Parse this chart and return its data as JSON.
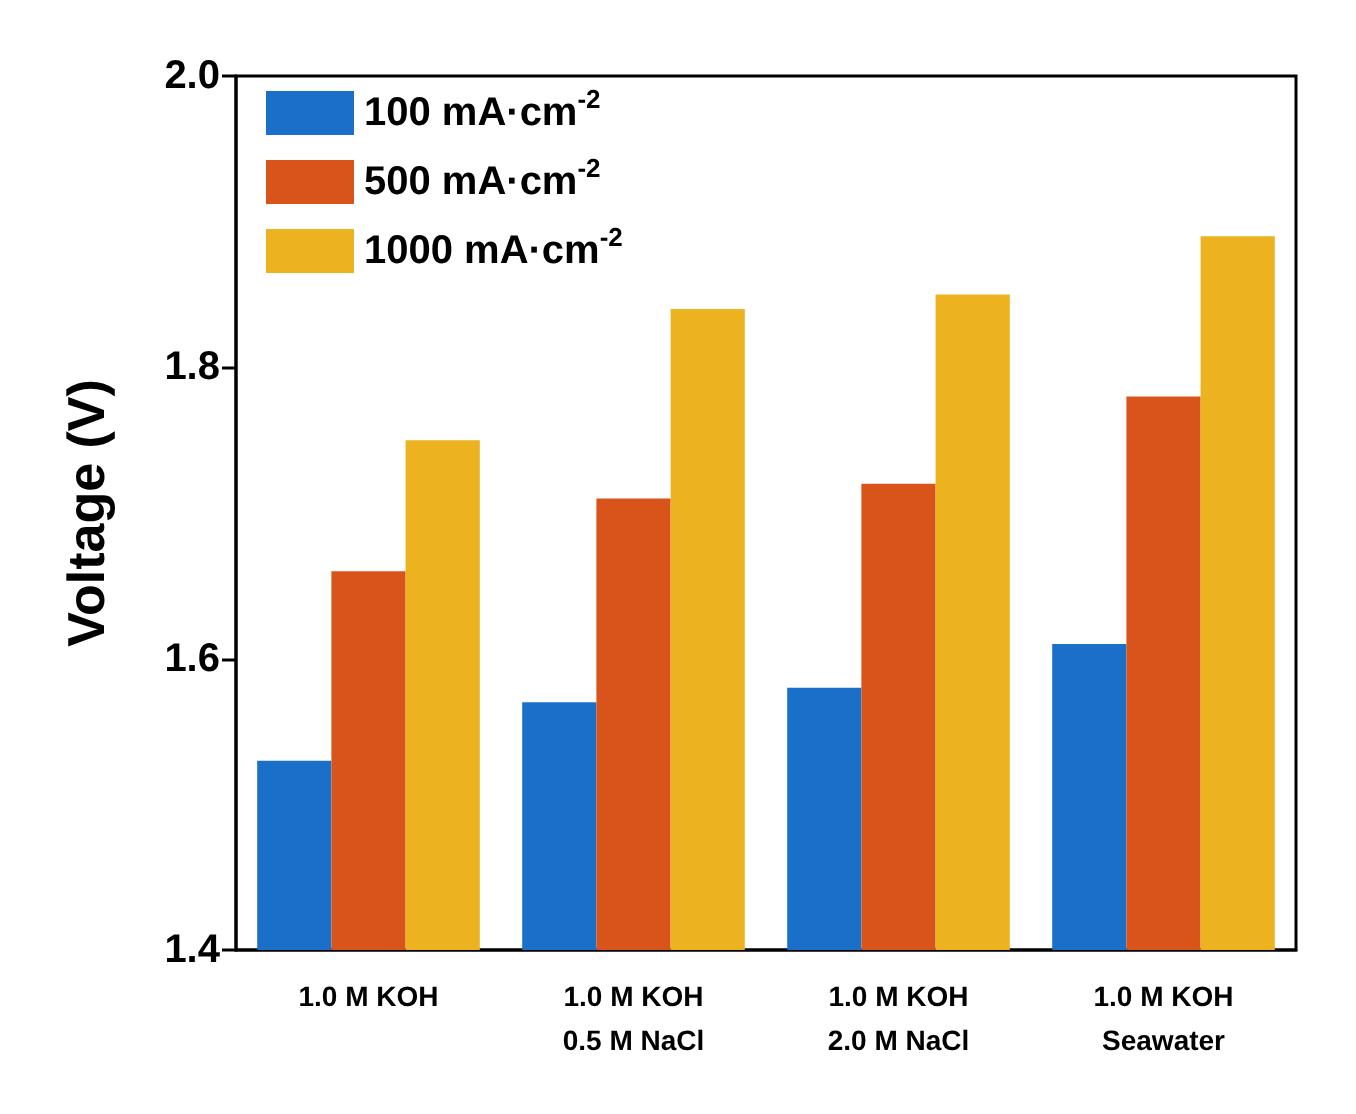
{
  "chart_data": {
    "type": "bar",
    "ylabel": "Voltage (V)",
    "categories": [
      "1.0 M KOH",
      "1.0 M KOH\n0.5 M NaCl",
      "1.0 M KOH\n2.0 M NaCl",
      "1.0 M KOH\nSeawater"
    ],
    "series": [
      {
        "name": "100 mA·cm$^{-2}$",
        "color": "#1a6fc9",
        "values": [
          1.53,
          1.57,
          1.58,
          1.61
        ]
      },
      {
        "name": "500 mA·cm$^{-2}$",
        "color": "#d9541a",
        "values": [
          1.66,
          1.71,
          1.72,
          1.78
        ]
      },
      {
        "name": "1000 mA·cm$^{-2}$",
        "color": "#ecb21f",
        "values": [
          1.75,
          1.84,
          1.85,
          1.89
        ]
      }
    ],
    "ylim": [
      1.4,
      2.0
    ],
    "yticks": [
      {
        "value": 1.4,
        "label": "1.4"
      },
      {
        "value": 1.6,
        "label": "1.6"
      },
      {
        "value": 1.8,
        "label": "1.8"
      },
      {
        "value": 2.0,
        "label": "2.0"
      }
    ],
    "grid": false,
    "legend": "top left"
  }
}
